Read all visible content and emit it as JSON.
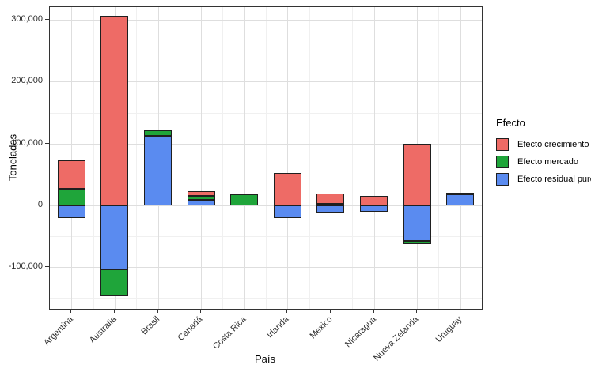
{
  "figure": {
    "y_axis": {
      "title": "Toneladas",
      "tick_labels": [
        "300,000",
        "200,000",
        "100,000",
        "0",
        "-100,000"
      ]
    },
    "x_axis": {
      "title": "País"
    },
    "legend": {
      "title": "Efecto",
      "items": [
        {
          "label": "Efecto crecimiento",
          "color": "#ee6b66"
        },
        {
          "label": "Efecto mercado",
          "color": "#1fa53a"
        },
        {
          "label": "Efecto residual puro",
          "color": "#5a8bf0"
        }
      ]
    }
  },
  "chart_data": {
    "type": "bar",
    "stacked": true,
    "title": "",
    "xlabel": "País",
    "ylabel": "Toneladas",
    "categories": [
      "Argentina",
      "Australia",
      "Brasil",
      "Canadá",
      "Costa Rica",
      "Irlanda",
      "México",
      "Nicaragua",
      "Nueva Zelanda",
      "Uruguay"
    ],
    "series": [
      {
        "name": "Efecto crecimiento",
        "color": "#ee6b66",
        "values": [
          46000,
          306000,
          0,
          8000,
          0,
          53000,
          17000,
          16000,
          100000,
          3000
        ]
      },
      {
        "name": "Efecto mercado",
        "color": "#1fa53a",
        "values": [
          27000,
          -44000,
          10000,
          6000,
          18000,
          0,
          2000,
          0,
          -6000,
          0
        ]
      },
      {
        "name": "Efecto residual puro",
        "color": "#5a8bf0",
        "values": [
          -21000,
          -103000,
          112000,
          9000,
          0,
          -21000,
          -13000,
          -10000,
          -57000,
          18000
        ]
      }
    ],
    "stack_order_from_zero": [
      "Efecto residual puro",
      "Efecto mercado",
      "Efecto crecimiento"
    ],
    "ylim": [
      -167000,
      320000
    ],
    "yticks": [
      300000,
      200000,
      100000,
      0,
      -100000
    ],
    "ytick_labels": [
      "300,000",
      "200,000",
      "100,000",
      "0",
      "-100,000"
    ],
    "yticks_minor": [
      250000,
      150000,
      50000,
      -50000,
      -150000
    ],
    "grid": "major-and-minor",
    "legend_position": "right",
    "legend_title": "Efecto"
  }
}
